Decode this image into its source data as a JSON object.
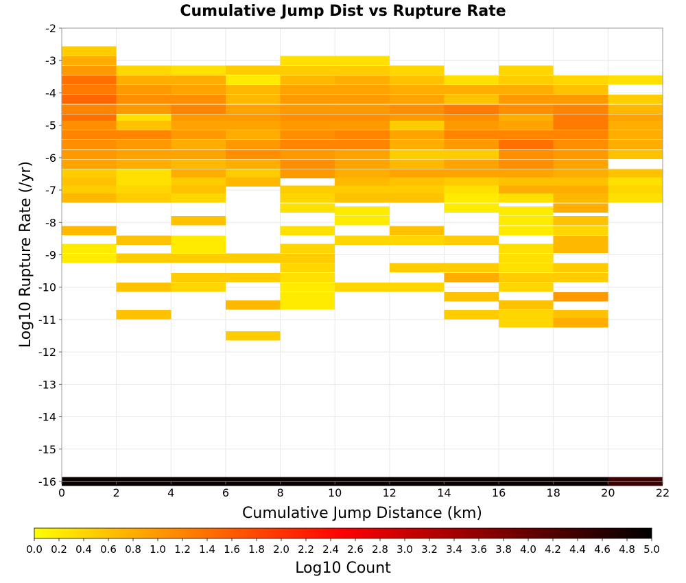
{
  "chart_data": {
    "type": "heatmap",
    "title": "Cumulative Jump Dist vs Rupture Rate",
    "xlabel": "Cumulative Jump Distance (km)",
    "ylabel": "Log10 Rupture Rate (/yr)",
    "xlim": [
      0,
      22
    ],
    "ylim": [
      -16,
      -2
    ],
    "x_ticks": [
      "0",
      "2",
      "4",
      "6",
      "8",
      "10",
      "12",
      "14",
      "16",
      "18",
      "20",
      "22"
    ],
    "y_ticks": [
      "-2",
      "-3",
      "-4",
      "-5",
      "-6",
      "-7",
      "-8",
      "-9",
      "-10",
      "-11",
      "-12",
      "-13",
      "-14",
      "-15",
      "-16"
    ],
    "grid": true,
    "x_bin_width": 2,
    "y_bin_height": 0.2857,
    "colorbar": {
      "label": "Log10 Count",
      "range": [
        0,
        5
      ],
      "ticks": [
        "0.0",
        "0.2",
        "0.4",
        "0.6",
        "0.8",
        "1.0",
        "1.2",
        "1.4",
        "1.6",
        "1.8",
        "2.0",
        "2.2",
        "2.4",
        "2.6",
        "2.8",
        "3.0",
        "3.2",
        "3.4",
        "3.6",
        "3.8",
        "4.0",
        "4.2",
        "4.4",
        "4.6",
        "4.8",
        "5.0"
      ],
      "colors": [
        "#ffff00",
        "#ffaa00",
        "#ff5500",
        "#ff0000",
        "#aa0000",
        "#550000",
        "#000000"
      ]
    },
    "columns": [
      {
        "x": 0,
        "cells": [
          [
            -2.7,
            0.5
          ],
          [
            -3.0,
            0.8
          ],
          [
            -3.3,
            1.0
          ],
          [
            -3.6,
            1.4
          ],
          [
            -3.9,
            1.3
          ],
          [
            -4.2,
            1.5
          ],
          [
            -4.5,
            1.2
          ],
          [
            -4.8,
            1.4
          ],
          [
            -5.0,
            1.1
          ],
          [
            -5.3,
            1.2
          ],
          [
            -5.6,
            1.1
          ],
          [
            -5.9,
            1.0
          ],
          [
            -6.2,
            0.9
          ],
          [
            -6.5,
            0.5
          ],
          [
            -6.75,
            0.6
          ],
          [
            -7.0,
            0.5
          ],
          [
            -7.25,
            0.7
          ],
          [
            -8.25,
            0.7
          ],
          [
            -8.8,
            0.2
          ],
          [
            -9.1,
            0.2
          ],
          [
            -16.0,
            4.9
          ]
        ]
      },
      {
        "x": 2,
        "cells": [
          [
            -3.3,
            0.4
          ],
          [
            -3.6,
            0.8
          ],
          [
            -3.9,
            1.0
          ],
          [
            -4.2,
            1.1
          ],
          [
            -4.5,
            1.0
          ],
          [
            -4.8,
            0.3
          ],
          [
            -5.0,
            0.6
          ],
          [
            -5.3,
            1.2
          ],
          [
            -5.6,
            1.0
          ],
          [
            -5.9,
            0.9
          ],
          [
            -6.2,
            0.8
          ],
          [
            -6.5,
            0.3
          ],
          [
            -6.75,
            0.3
          ],
          [
            -7.0,
            0.4
          ],
          [
            -7.25,
            0.5
          ],
          [
            -8.55,
            0.6
          ],
          [
            -9.1,
            0.5
          ],
          [
            -10.0,
            0.6
          ],
          [
            -10.85,
            0.6
          ],
          [
            -16.0,
            4.9
          ]
        ]
      },
      {
        "x": 4,
        "cells": [
          [
            -3.3,
            0.3
          ],
          [
            -3.6,
            0.8
          ],
          [
            -3.9,
            0.9
          ],
          [
            -4.2,
            1.1
          ],
          [
            -4.5,
            1.2
          ],
          [
            -4.8,
            1.0
          ],
          [
            -5.0,
            0.9
          ],
          [
            -5.3,
            1.0
          ],
          [
            -5.6,
            0.8
          ],
          [
            -5.9,
            0.9
          ],
          [
            -6.2,
            0.7
          ],
          [
            -6.5,
            0.8
          ],
          [
            -6.75,
            0.5
          ],
          [
            -7.0,
            0.6
          ],
          [
            -7.25,
            0.4
          ],
          [
            -7.95,
            0.6
          ],
          [
            -8.55,
            0.2
          ],
          [
            -8.8,
            0.2
          ],
          [
            -9.1,
            0.5
          ],
          [
            -9.7,
            0.5
          ],
          [
            -10.0,
            0.4
          ],
          [
            -16.0,
            4.9
          ]
        ]
      },
      {
        "x": 6,
        "cells": [
          [
            -3.3,
            0.5
          ],
          [
            -3.6,
            0.2
          ],
          [
            -3.9,
            0.7
          ],
          [
            -4.2,
            0.7
          ],
          [
            -4.5,
            0.9
          ],
          [
            -4.8,
            1.0
          ],
          [
            -5.0,
            0.9
          ],
          [
            -5.3,
            0.8
          ],
          [
            -5.6,
            1.0
          ],
          [
            -5.9,
            1.1
          ],
          [
            -6.2,
            0.8
          ],
          [
            -6.5,
            0.5
          ],
          [
            -6.75,
            0.7
          ],
          [
            -9.1,
            0.5
          ],
          [
            -9.7,
            0.5
          ],
          [
            -10.55,
            0.7
          ],
          [
            -11.5,
            0.5
          ],
          [
            -16.0,
            4.9
          ]
        ]
      },
      {
        "x": 8,
        "cells": [
          [
            -3.0,
            0.3
          ],
          [
            -3.3,
            0.5
          ],
          [
            -3.6,
            0.7
          ],
          [
            -3.9,
            0.9
          ],
          [
            -4.2,
            1.0
          ],
          [
            -4.5,
            1.0
          ],
          [
            -4.8,
            1.1
          ],
          [
            -5.0,
            1.0
          ],
          [
            -5.3,
            1.1
          ],
          [
            -5.6,
            1.2
          ],
          [
            -5.9,
            1.0
          ],
          [
            -6.2,
            1.1
          ],
          [
            -6.5,
            1.0
          ],
          [
            -7.0,
            0.5
          ],
          [
            -7.25,
            0.4
          ],
          [
            -7.55,
            0.3
          ],
          [
            -8.25,
            0.3
          ],
          [
            -8.8,
            0.4
          ],
          [
            -9.1,
            0.5
          ],
          [
            -9.4,
            0.4
          ],
          [
            -9.7,
            0.3
          ],
          [
            -10.0,
            0.2
          ],
          [
            -10.3,
            0.2
          ],
          [
            -10.55,
            0.2
          ],
          [
            -16.0,
            4.9
          ]
        ]
      },
      {
        "x": 10,
        "cells": [
          [
            -3.0,
            0.3
          ],
          [
            -3.3,
            0.5
          ],
          [
            -3.6,
            0.8
          ],
          [
            -3.9,
            0.9
          ],
          [
            -4.2,
            1.0
          ],
          [
            -4.5,
            1.0
          ],
          [
            -4.8,
            1.1
          ],
          [
            -5.0,
            1.0
          ],
          [
            -5.3,
            1.2
          ],
          [
            -5.6,
            1.2
          ],
          [
            -5.9,
            0.9
          ],
          [
            -6.2,
            0.9
          ],
          [
            -6.5,
            0.8
          ],
          [
            -6.75,
            0.7
          ],
          [
            -7.0,
            0.5
          ],
          [
            -7.25,
            0.6
          ],
          [
            -7.65,
            0.2
          ],
          [
            -7.95,
            0.2
          ],
          [
            -8.55,
            0.4
          ],
          [
            -10.0,
            0.4
          ],
          [
            -16.0,
            4.9
          ]
        ]
      },
      {
        "x": 12,
        "cells": [
          [
            -3.3,
            0.4
          ],
          [
            -3.6,
            0.6
          ],
          [
            -3.9,
            0.8
          ],
          [
            -4.2,
            0.9
          ],
          [
            -4.5,
            1.1
          ],
          [
            -4.8,
            1.0
          ],
          [
            -5.0,
            0.5
          ],
          [
            -5.3,
            0.9
          ],
          [
            -5.6,
            0.8
          ],
          [
            -5.9,
            0.5
          ],
          [
            -6.2,
            0.7
          ],
          [
            -6.5,
            0.9
          ],
          [
            -6.75,
            0.6
          ],
          [
            -7.0,
            0.5
          ],
          [
            -7.25,
            0.6
          ],
          [
            -8.25,
            0.6
          ],
          [
            -8.55,
            0.4
          ],
          [
            -9.4,
            0.5
          ],
          [
            -10.0,
            0.4
          ],
          [
            -16.0,
            4.9
          ]
        ]
      },
      {
        "x": 14,
        "cells": [
          [
            -3.6,
            0.3
          ],
          [
            -3.9,
            0.8
          ],
          [
            -4.2,
            0.6
          ],
          [
            -4.5,
            1.3
          ],
          [
            -4.8,
            1.1
          ],
          [
            -5.0,
            1.0
          ],
          [
            -5.3,
            1.2
          ],
          [
            -5.6,
            1.0
          ],
          [
            -5.9,
            0.5
          ],
          [
            -6.2,
            0.9
          ],
          [
            -6.5,
            0.9
          ],
          [
            -6.75,
            0.5
          ],
          [
            -7.0,
            0.3
          ],
          [
            -7.25,
            0.2
          ],
          [
            -7.55,
            0.2
          ],
          [
            -8.55,
            0.5
          ],
          [
            -9.4,
            0.5
          ],
          [
            -9.7,
            0.8
          ],
          [
            -10.3,
            0.6
          ],
          [
            -10.85,
            0.5
          ],
          [
            -16.0,
            4.9
          ]
        ]
      },
      {
        "x": 16,
        "cells": [
          [
            -3.3,
            0.4
          ],
          [
            -3.6,
            0.5
          ],
          [
            -3.9,
            0.8
          ],
          [
            -4.2,
            1.0
          ],
          [
            -4.5,
            1.1
          ],
          [
            -4.8,
            0.8
          ],
          [
            -5.0,
            0.9
          ],
          [
            -5.3,
            1.2
          ],
          [
            -5.6,
            1.4
          ],
          [
            -5.9,
            1.1
          ],
          [
            -6.2,
            1.1
          ],
          [
            -6.5,
            0.9
          ],
          [
            -6.75,
            0.6
          ],
          [
            -7.0,
            0.8
          ],
          [
            -7.25,
            0.3
          ],
          [
            -7.65,
            0.2
          ],
          [
            -7.95,
            0.2
          ],
          [
            -8.25,
            0.2
          ],
          [
            -8.8,
            0.3
          ],
          [
            -9.1,
            0.3
          ],
          [
            -9.4,
            0.3
          ],
          [
            -9.7,
            0.5
          ],
          [
            -10.0,
            0.4
          ],
          [
            -10.55,
            0.6
          ],
          [
            -10.85,
            0.4
          ],
          [
            -11.1,
            0.4
          ],
          [
            -16.0,
            4.9
          ]
        ]
      },
      {
        "x": 18,
        "cells": [
          [
            -3.6,
            0.4
          ],
          [
            -3.9,
            0.6
          ],
          [
            -4.2,
            1.0
          ],
          [
            -4.5,
            1.2
          ],
          [
            -4.8,
            1.3
          ],
          [
            -5.0,
            1.3
          ],
          [
            -5.3,
            1.2
          ],
          [
            -5.6,
            1.1
          ],
          [
            -5.9,
            1.0
          ],
          [
            -6.2,
            0.9
          ],
          [
            -6.5,
            0.8
          ],
          [
            -6.75,
            0.6
          ],
          [
            -7.0,
            0.8
          ],
          [
            -7.25,
            0.7
          ],
          [
            -7.55,
            0.8
          ],
          [
            -7.95,
            0.6
          ],
          [
            -8.25,
            0.4
          ],
          [
            -8.55,
            0.7
          ],
          [
            -8.8,
            0.7
          ],
          [
            -9.4,
            0.5
          ],
          [
            -9.7,
            0.5
          ],
          [
            -10.3,
            1.0
          ],
          [
            -10.85,
            0.6
          ],
          [
            -11.1,
            0.8
          ],
          [
            -16.0,
            4.9
          ]
        ]
      },
      {
        "x": 20,
        "cells": [
          [
            -3.6,
            0.3
          ],
          [
            -4.2,
            0.5
          ],
          [
            -4.5,
            0.7
          ],
          [
            -4.8,
            0.9
          ],
          [
            -5.0,
            0.8
          ],
          [
            -5.3,
            0.8
          ],
          [
            -5.6,
            0.8
          ],
          [
            -5.9,
            0.6
          ],
          [
            -6.5,
            0.6
          ],
          [
            -6.75,
            0.3
          ],
          [
            -7.0,
            0.4
          ],
          [
            -7.25,
            0.3
          ],
          [
            -16.0,
            4.4
          ]
        ]
      }
    ]
  }
}
